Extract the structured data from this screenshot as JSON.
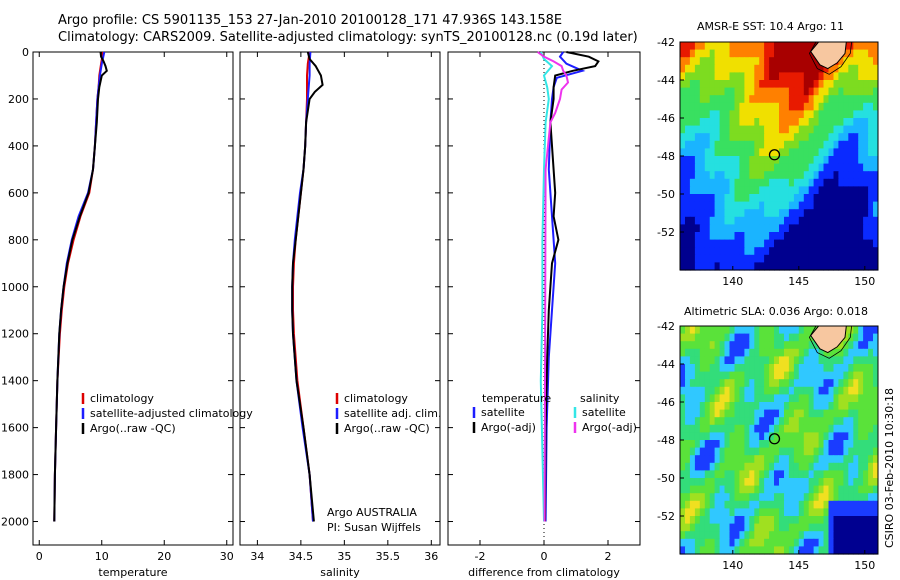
{
  "header": {
    "line1": "Argo profile: CS 5901135_153 27-Jan-2010 20100128_171 47.936S 143.158E",
    "line2": "Climatology: CARS2009. Satellite-adjusted climatology: synTS_20100128.nc (0.19d later)"
  },
  "colors": {
    "red": "#dd0000",
    "blue": "#1d1dff",
    "black": "#000000",
    "cyan": "#33e6e6",
    "magenta": "#ee33ee"
  },
  "chart_data": [
    {
      "type": "line",
      "id": "temperature",
      "xlabel": "temperature",
      "xlim": [
        -1,
        31
      ],
      "xticks": [
        0,
        10,
        20,
        30
      ],
      "ylim": [
        2100,
        0
      ],
      "yticks": [
        0,
        200,
        400,
        600,
        800,
        1000,
        1200,
        1400,
        1600,
        1800,
        2000
      ],
      "series": [
        {
          "name": "climatology",
          "color": "red",
          "depth": [
            0,
            50,
            100,
            150,
            200,
            300,
            400,
            500,
            600,
            700,
            800,
            900,
            1000,
            1100,
            1200,
            1400,
            1600,
            1800,
            2000
          ],
          "values": [
            10.2,
            9.9,
            9.6,
            9.5,
            9.3,
            9.1,
            8.9,
            8.6,
            8.0,
            6.6,
            5.5,
            4.6,
            4.0,
            3.6,
            3.3,
            2.9,
            2.7,
            2.5,
            2.4
          ]
        },
        {
          "name": "satellite-adjusted climatology",
          "color": "blue",
          "depth": [
            0,
            50,
            100,
            150,
            200,
            300,
            400,
            500,
            600,
            700,
            800,
            900,
            1000,
            1100,
            1200,
            1400,
            1600,
            1800,
            2000
          ],
          "values": [
            10.4,
            10.0,
            9.7,
            9.5,
            9.3,
            9.1,
            8.9,
            8.6,
            7.8,
            6.3,
            5.2,
            4.4,
            3.9,
            3.5,
            3.2,
            2.9,
            2.7,
            2.5,
            2.4
          ]
        },
        {
          "name": "Argo(..raw -QC)",
          "color": "black",
          "depth": [
            0,
            20,
            40,
            60,
            80,
            100,
            150,
            200,
            300,
            400,
            500,
            600,
            700,
            800,
            900,
            1000,
            1100,
            1200,
            1400,
            1600,
            1800,
            2000
          ],
          "values": [
            9.8,
            9.9,
            10.3,
            10.6,
            10.8,
            10.0,
            9.6,
            9.4,
            9.2,
            8.9,
            8.6,
            7.9,
            6.5,
            5.3,
            4.5,
            3.9,
            3.5,
            3.2,
            2.9,
            2.7,
            2.5,
            2.4
          ]
        }
      ],
      "legend": [
        {
          "label": "climatology",
          "color": "red"
        },
        {
          "label": "satellite-adjusted climatology",
          "color": "blue"
        },
        {
          "label": "Argo(..raw -QC)",
          "color": "black"
        }
      ]
    },
    {
      "type": "line",
      "id": "salinity",
      "xlabel": "salinity",
      "xlim": [
        33.8,
        36.1
      ],
      "xticks": [
        34,
        34.5,
        35,
        35.5,
        36
      ],
      "ylim": [
        2100,
        0
      ],
      "series": [
        {
          "name": "climatology",
          "color": "red",
          "depth": [
            0,
            50,
            100,
            150,
            200,
            300,
            400,
            500,
            600,
            700,
            800,
            900,
            1000,
            1100,
            1200,
            1400,
            1600,
            1800,
            2000
          ],
          "values": [
            34.6,
            34.58,
            34.57,
            34.57,
            34.57,
            34.56,
            34.55,
            34.53,
            34.5,
            34.47,
            34.44,
            34.42,
            34.41,
            34.41,
            34.42,
            34.46,
            34.53,
            34.6,
            34.64
          ]
        },
        {
          "name": "satellite adj. clim.",
          "color": "blue",
          "depth": [
            0,
            50,
            100,
            150,
            200,
            300,
            400,
            500,
            600,
            700,
            800,
            900,
            1000,
            1100,
            1200,
            1400,
            1600,
            1800,
            2000
          ],
          "values": [
            34.61,
            34.6,
            34.6,
            34.59,
            34.58,
            34.56,
            34.55,
            34.53,
            34.49,
            34.46,
            34.43,
            34.41,
            34.4,
            34.4,
            34.41,
            34.45,
            34.52,
            34.6,
            34.64
          ]
        },
        {
          "name": "Argo(..raw -QC)",
          "color": "black",
          "depth": [
            0,
            30,
            60,
            80,
            100,
            140,
            170,
            200,
            300,
            400,
            500,
            600,
            700,
            800,
            900,
            1000,
            1100,
            1200,
            1400,
            1600,
            1800,
            2000
          ],
          "values": [
            34.58,
            34.6,
            34.67,
            34.7,
            34.73,
            34.75,
            34.66,
            34.6,
            34.56,
            34.55,
            34.53,
            34.5,
            34.47,
            34.44,
            34.41,
            34.4,
            34.4,
            34.41,
            34.45,
            34.53,
            34.6,
            34.65
          ]
        }
      ],
      "legend": [
        {
          "label": "climatology",
          "color": "red"
        },
        {
          "label": "satellite adj. clim.",
          "color": "blue"
        },
        {
          "label": "Argo(..raw -QC)",
          "color": "black"
        }
      ],
      "annotation": [
        "Argo AUSTRALIA",
        "PI: Susan Wijffels"
      ]
    },
    {
      "type": "line",
      "id": "difference",
      "xlabel": "difference from climatology",
      "xlim": [
        -3,
        3
      ],
      "xticks": [
        -2,
        0,
        2
      ],
      "ylim": [
        2100,
        0
      ],
      "series": [
        {
          "name": "temperature satellite",
          "color": "blue",
          "depth": [
            0,
            20,
            50,
            80,
            110,
            150,
            200,
            300,
            500,
            700,
            900,
            1100,
            1300,
            1600,
            2000
          ],
          "values": [
            0.6,
            0.5,
            0.7,
            1.2,
            0.4,
            0.3,
            0.25,
            0.2,
            0.15,
            0.25,
            0.35,
            0.25,
            0.15,
            0.08,
            0.05
          ]
        },
        {
          "name": "temperature Argo(-adj)",
          "color": "black",
          "depth": [
            0,
            20,
            40,
            60,
            80,
            100,
            150,
            200,
            300,
            500,
            600,
            700,
            800,
            900,
            1000,
            1100,
            1300,
            1600,
            2000
          ],
          "values": [
            0.7,
            1.4,
            1.7,
            1.6,
            0.9,
            0.35,
            0.3,
            0.3,
            0.2,
            0.3,
            0.35,
            0.3,
            0.45,
            0.25,
            0.2,
            0.15,
            0.1,
            0.05,
            0.03
          ]
        },
        {
          "name": "salinity satellite",
          "color": "cyan",
          "depth": [
            0,
            30,
            60,
            100,
            150,
            200,
            300,
            500,
            800,
            1100,
            1400,
            1700,
            2000
          ],
          "values": [
            -0.1,
            0.0,
            0.25,
            0.0,
            0.1,
            0.15,
            0.05,
            0.0,
            -0.05,
            -0.05,
            -0.1,
            -0.05,
            0.0
          ]
        },
        {
          "name": "salinity Argo(-adj)",
          "color": "magenta",
          "depth": [
            0,
            20,
            40,
            60,
            80,
            100,
            130,
            160,
            200,
            260,
            300,
            500,
            2000
          ],
          "values": [
            -0.2,
            0.0,
            0.3,
            0.55,
            0.6,
            0.7,
            0.75,
            0.55,
            0.5,
            0.35,
            0.2,
            0.05,
            0.02
          ]
        }
      ],
      "legend_left_title": "temperature",
      "legend_right_title": "salinity",
      "legend_left": [
        {
          "label": "satellite",
          "color": "blue"
        },
        {
          "label": "Argo(-adj)",
          "color": "black"
        }
      ],
      "legend_right": [
        {
          "label": "satellite",
          "color": "cyan"
        },
        {
          "label": "Argo(-adj)",
          "color": "magenta"
        }
      ]
    },
    {
      "type": "heatmap",
      "id": "sst-map",
      "title": "AMSR-E SST: 10.4 Argo: 11",
      "xlim": [
        136,
        151
      ],
      "ylim": [
        -54,
        -42
      ],
      "xticks": [
        140,
        145,
        150
      ],
      "yticks": [
        -42,
        -44,
        -46,
        -48,
        -50,
        -52
      ],
      "marker": {
        "lon": 143.158,
        "lat": -47.936
      }
    },
    {
      "type": "heatmap",
      "id": "sla-map",
      "title": "Altimetric SLA: 0.036 Argo: 0.018",
      "xlim": [
        136,
        151
      ],
      "ylim": [
        -54,
        -42
      ],
      "xticks": [
        140,
        145,
        150
      ],
      "yticks": [
        -42,
        -44,
        -46,
        -48,
        -50,
        -52
      ],
      "marker": {
        "lon": 143.158,
        "lat": -47.936
      }
    }
  ],
  "credit": "CSIRO 03-Feb-2010 10:30:18"
}
